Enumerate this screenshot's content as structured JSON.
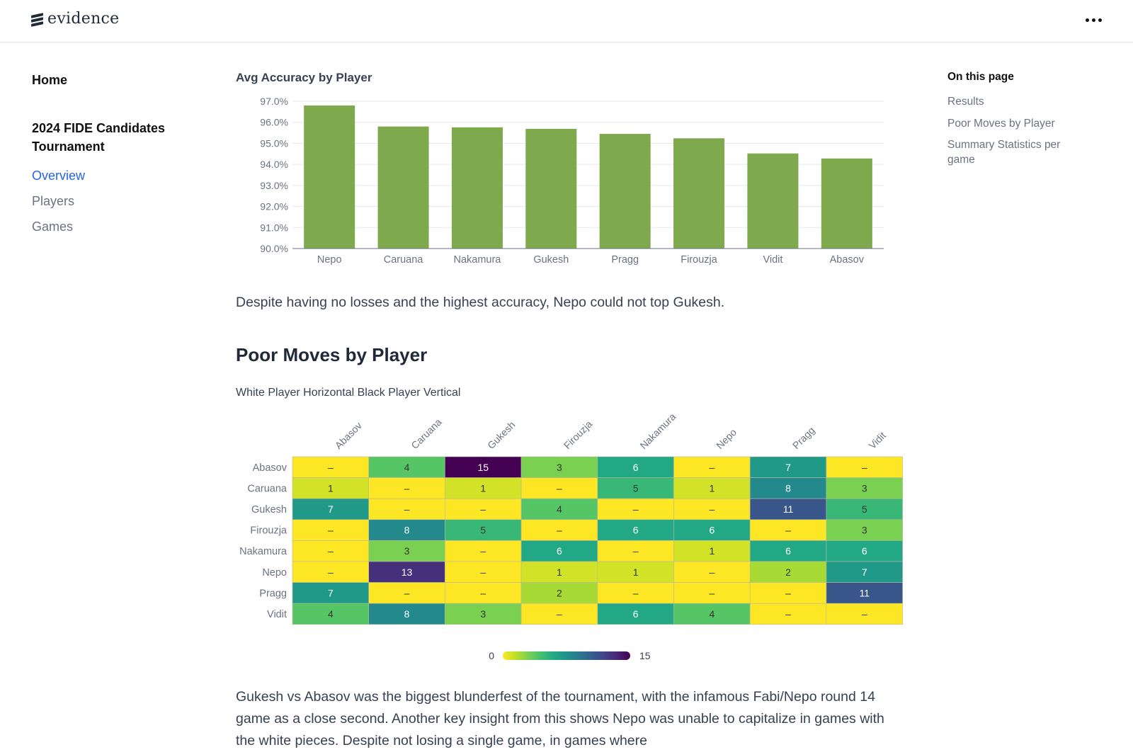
{
  "header": {
    "logo_text": "evidence",
    "menu_icon": "more-horizontal-icon"
  },
  "sidebar": {
    "home": "Home",
    "section_title": "2024 FIDE Candidates Tournament",
    "items": [
      {
        "label": "Overview",
        "active": true
      },
      {
        "label": "Players",
        "active": false
      },
      {
        "label": "Games",
        "active": false
      }
    ]
  },
  "toc": {
    "title": "On this page",
    "items": [
      "Results",
      "Poor Moves by Player",
      "Summary Statistics per game"
    ]
  },
  "main": {
    "paragraph_1": "Despite having no losses and the highest accuracy, Nepo could not top Gukesh.",
    "section_heading": "Poor Moves by Player",
    "heatmap_subtitle": "White Player Horizontal Black Player Vertical",
    "paragraph_2": "Gukesh vs Abasov was the biggest blunderfest of the tournament, with the infamous Fabi/Nepo round 14 game as a close second. Another key insight from this shows Nepo was unable to capitalize in games with the white pieces. Despite not losing a single game, in games where"
  },
  "chart_data": [
    {
      "type": "bar",
      "title": "Avg Accuracy by Player",
      "categories": [
        "Nepo",
        "Caruana",
        "Nakamura",
        "Gukesh",
        "Pragg",
        "Firouzja",
        "Vidit",
        "Abasov"
      ],
      "values": [
        96.8,
        95.8,
        95.76,
        95.69,
        95.45,
        95.24,
        94.52,
        94.28
      ],
      "ylim": [
        90,
        97
      ],
      "yticks": [
        "90.0%",
        "91.0%",
        "92.0%",
        "93.0%",
        "94.0%",
        "95.0%",
        "96.0%",
        "97.0%"
      ],
      "grid": true,
      "color": "#7ea94d"
    },
    {
      "type": "heatmap",
      "x_categories": [
        "Abasov",
        "Caruana",
        "Gukesh",
        "Firouzja",
        "Nakamura",
        "Nepo",
        "Pragg",
        "Vidit"
      ],
      "y_categories": [
        "Abasov",
        "Caruana",
        "Gukesh",
        "Firouzja",
        "Nakamura",
        "Nepo",
        "Pragg",
        "Vidit"
      ],
      "values": [
        [
          null,
          4,
          15,
          3,
          6,
          null,
          7,
          null
        ],
        [
          1,
          null,
          1,
          null,
          5,
          1,
          8,
          3
        ],
        [
          7,
          null,
          null,
          4,
          null,
          null,
          11,
          5
        ],
        [
          null,
          8,
          5,
          null,
          6,
          6,
          null,
          3
        ],
        [
          null,
          3,
          null,
          6,
          null,
          1,
          6,
          6
        ],
        [
          null,
          13,
          null,
          1,
          1,
          null,
          2,
          7
        ],
        [
          7,
          null,
          null,
          2,
          null,
          null,
          null,
          11
        ],
        [
          4,
          8,
          3,
          null,
          6,
          4,
          null,
          null
        ]
      ],
      "missing_label": "–",
      "colorscale": "viridis (reversed)",
      "color_range": [
        0,
        15
      ],
      "legend_min": "0",
      "legend_max": "15",
      "legend": "bottom"
    }
  ]
}
